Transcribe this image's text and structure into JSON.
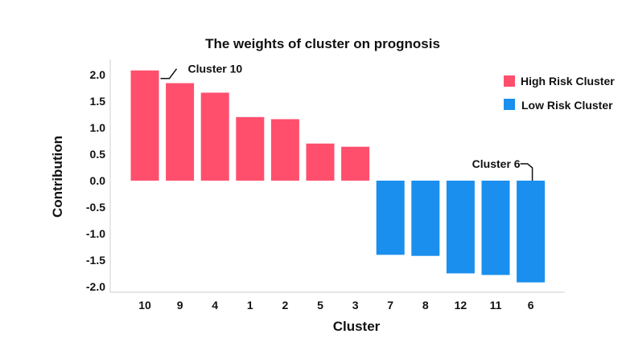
{
  "chart_data": {
    "type": "bar",
    "title": "The weights of cluster on prognosis",
    "xlabel": "Cluster",
    "ylabel": "Contribution",
    "ylim": [
      -2.2,
      2.3
    ],
    "yticks": [
      "2.0",
      "1.5",
      "1.0",
      "0.5",
      "0.0",
      "-0.5",
      "-1.0",
      "-1.5",
      "-2.0"
    ],
    "ytick_values": [
      2.0,
      1.5,
      1.0,
      0.5,
      0.0,
      -0.5,
      -1.0,
      -1.5,
      -2.0
    ],
    "grid": false,
    "legend_position": "top-right",
    "categories": [
      "10",
      "9",
      "4",
      "1",
      "2",
      "5",
      "3",
      "7",
      "8",
      "12",
      "11",
      "6"
    ],
    "series": [
      {
        "name": "High Risk Cluster",
        "color": "#FF4F6D",
        "values": [
          2.08,
          1.84,
          1.66,
          1.2,
          1.16,
          0.7,
          0.64,
          null,
          null,
          null,
          null,
          null
        ]
      },
      {
        "name": "Low Risk Cluster",
        "color": "#1A8FEE",
        "values": [
          null,
          null,
          null,
          null,
          null,
          null,
          null,
          -1.4,
          -1.42,
          -1.75,
          -1.78,
          -1.92
        ]
      }
    ],
    "annotations": [
      {
        "text": "Cluster 10",
        "category": "10"
      },
      {
        "text": "Cluster 6",
        "category": "6"
      }
    ]
  }
}
